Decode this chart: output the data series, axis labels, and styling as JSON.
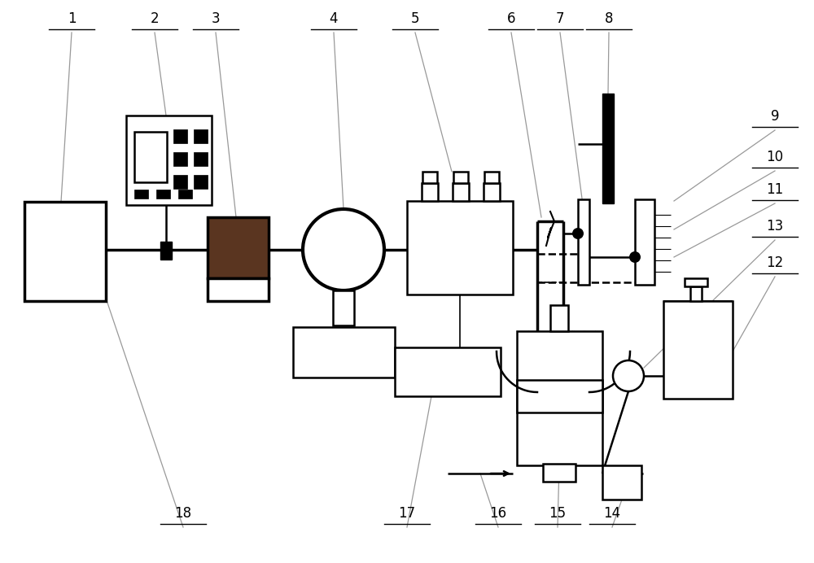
{
  "bg": "#ffffff",
  "black": "#000000",
  "brown": "#5a3520",
  "gray_line": "#999999",
  "lw_heavy": 2.5,
  "lw_med": 1.8,
  "lw_thin": 1.2,
  "label_fs": 12
}
